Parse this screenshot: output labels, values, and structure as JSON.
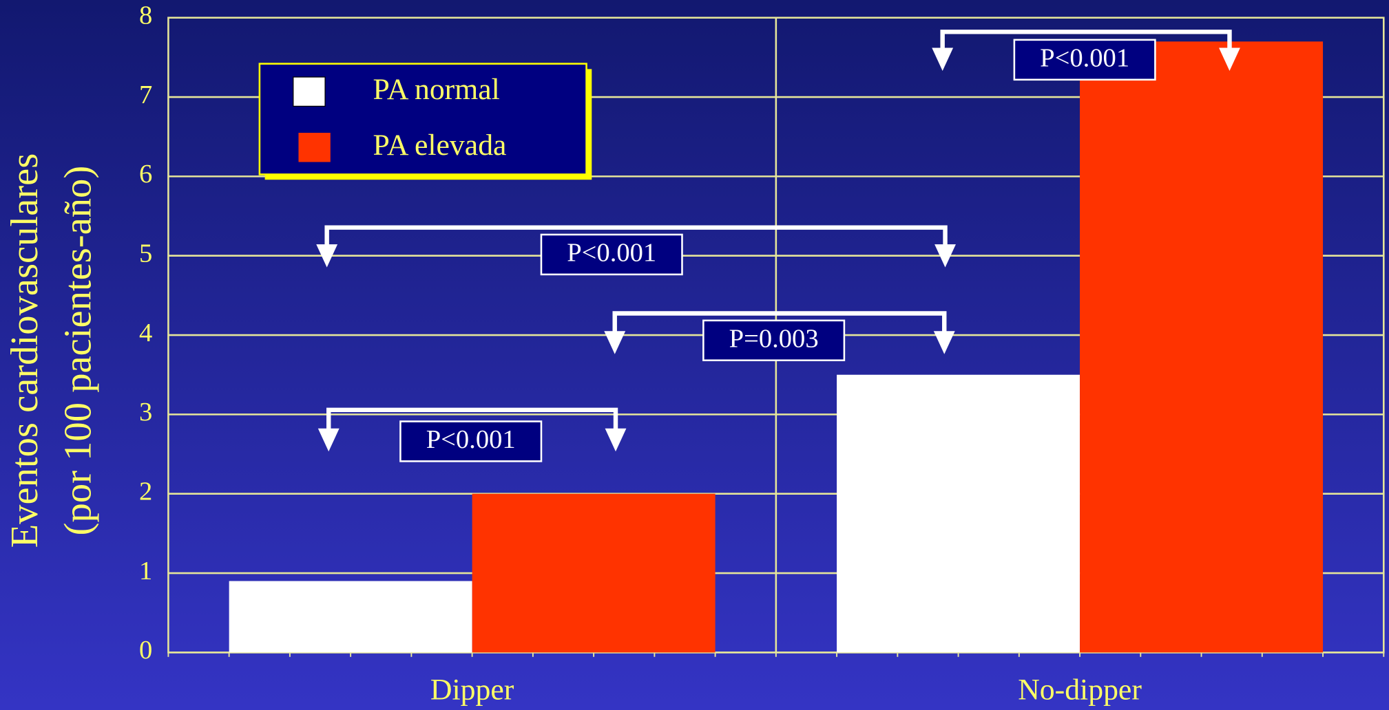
{
  "chart_data": {
    "type": "bar",
    "ylabel": [
      "Eventos cardiovasculares",
      "(por 100 pacientes-año)"
    ],
    "categories": [
      "Dipper",
      "No-dipper"
    ],
    "series": [
      {
        "name": "PA normal",
        "color": "#ffffff",
        "values": [
          0.9,
          3.5
        ]
      },
      {
        "name": "PA elevada",
        "color": "#ff3300",
        "values": [
          2.0,
          7.7
        ]
      }
    ],
    "ylim": [
      0,
      8
    ],
    "yticks": [
      0,
      1,
      2,
      3,
      4,
      5,
      6,
      7,
      8
    ],
    "grid": true,
    "annotations": [
      {
        "text": "P<0.001"
      },
      {
        "text": "P=0.003"
      },
      {
        "text": "P<0.001"
      },
      {
        "text": "P<0.001"
      }
    ]
  }
}
